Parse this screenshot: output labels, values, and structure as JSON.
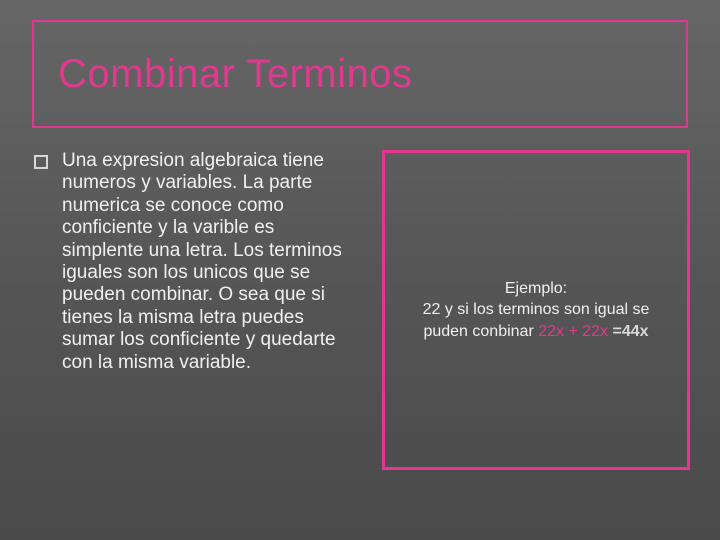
{
  "colors": {
    "title_border": "#e23890",
    "title_text": "#e23890",
    "example_border": "#e23890",
    "equation_highlight": "#e23890",
    "equation_answer": "#d9d9d9",
    "body_text": "#f0f0f0"
  },
  "title": "Combinar Terminos",
  "bullet_text": "Una expresion algebraica tiene numeros y variables. La parte numerica se conoce como conficiente y la varible es simplente una letra. Los terminos  iguales son los unicos que se pueden combinar. O sea que si tienes la misma letra puedes sumar los conficiente y quedarte con la misma variable.",
  "example": {
    "label": "Ejemplo:",
    "line2": "22 y si los terminos son igual se",
    "line3_prefix": "puden conbinar  ",
    "eq_a": "22x ",
    "eq_plus": "+",
    "eq_b": " 22x ",
    "eq_ans": "=44x"
  },
  "fontsizes": {
    "title": 40,
    "body": 19,
    "example": 16
  }
}
